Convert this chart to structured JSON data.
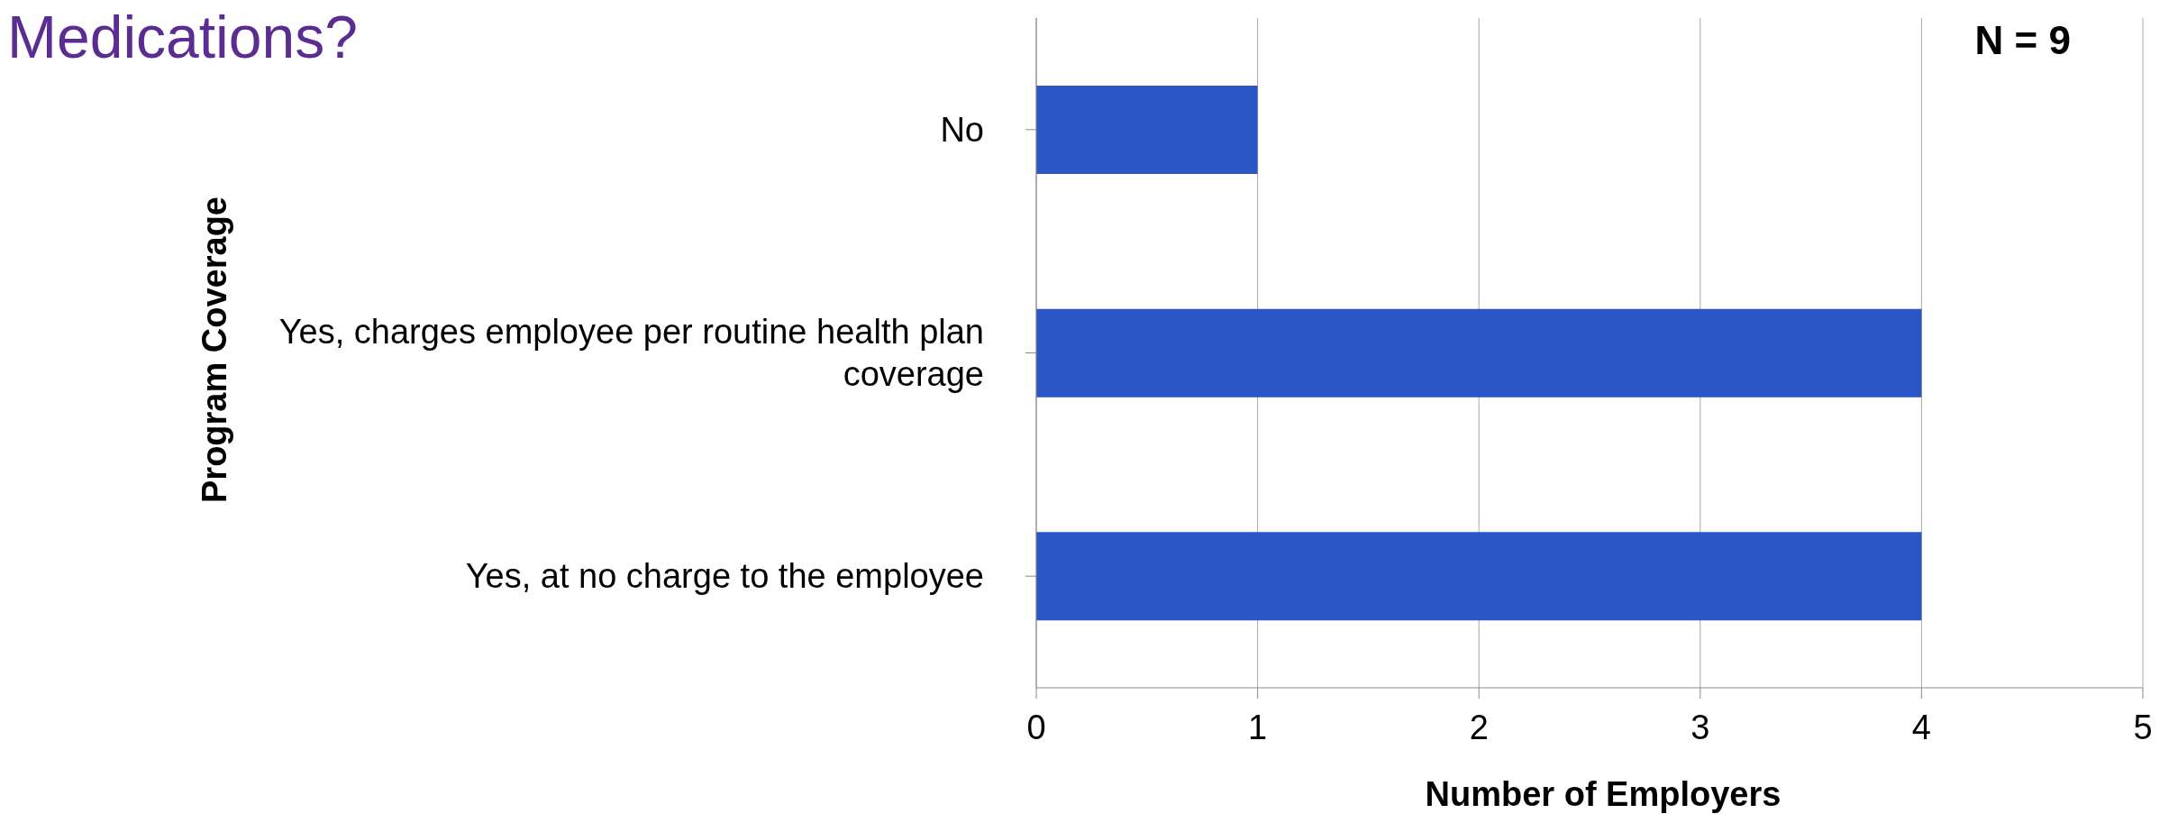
{
  "chart_data": {
    "type": "bar",
    "orientation": "horizontal",
    "title": "Medications?",
    "xlabel": "Number of Employers",
    "ylabel": "Program Coverage",
    "categories": [
      "No",
      "Yes, charges employee per routine health plan coverage",
      "Yes, at no charge to the employee"
    ],
    "values": [
      1,
      4,
      4
    ],
    "color": "#2a56c6",
    "xlim": [
      0,
      5
    ],
    "xticks": [
      0,
      1,
      2,
      3,
      4,
      5
    ],
    "grid": "x",
    "annotations": [
      "N = 9"
    ]
  }
}
